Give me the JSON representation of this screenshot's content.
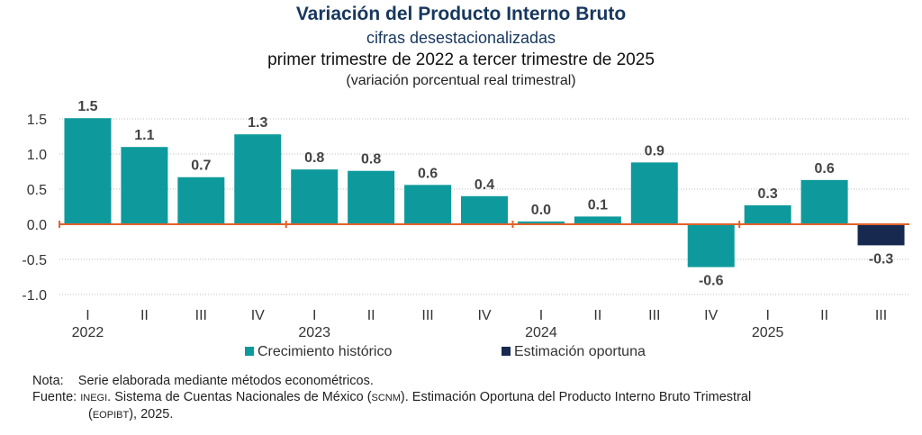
{
  "title": "Variación del Producto Interno Bruto",
  "subtitle1": "cifras desestacionalizadas",
  "subtitle2": "primer trimestre de 2022 a tercer trimestre de 2025",
  "subtitle3": "(variación porcentual real trimestral)",
  "chart_data": {
    "type": "bar",
    "categories": [
      "I",
      "II",
      "III",
      "IV",
      "I",
      "II",
      "III",
      "IV",
      "I",
      "II",
      "III",
      "IV",
      "I",
      "II",
      "III"
    ],
    "years": [
      {
        "label": "2022",
        "index": 0
      },
      {
        "label": "2023",
        "index": 4
      },
      {
        "label": "2024",
        "index": 8
      },
      {
        "label": "2025",
        "index": 12
      }
    ],
    "values": [
      1.51,
      1.1,
      0.67,
      1.28,
      0.78,
      0.76,
      0.56,
      0.4,
      0.04,
      0.11,
      0.88,
      -0.61,
      0.27,
      0.63,
      -0.3
    ],
    "data_labels": [
      "1.5",
      "1.1",
      "0.7",
      "1.3",
      "0.8",
      "0.8",
      "0.6",
      "0.4",
      "0.0",
      "0.1",
      "0.9",
      "-0.6",
      "0.3",
      "0.6",
      "-0.3"
    ],
    "series_type": [
      "hist",
      "hist",
      "hist",
      "hist",
      "hist",
      "hist",
      "hist",
      "hist",
      "hist",
      "hist",
      "hist",
      "hist",
      "hist",
      "hist",
      "est"
    ],
    "yticks": [
      "1.5",
      "1.0",
      "0.5",
      "0.0",
      "-0.5",
      "-1.0"
    ],
    "ylim": [
      -1.0,
      1.5
    ],
    "grid": true,
    "legend": [
      {
        "name": "Crecimiento  histórico",
        "color": "#0e9a9c"
      },
      {
        "name": "Estimación oportuna",
        "color": "#17294f"
      }
    ],
    "legend_position": "bottom",
    "axis_color": "#e0622a"
  },
  "notes": {
    "nota_label": "Nota:",
    "nota_text": "Serie elaborada mediante métodos econométricos.",
    "fuente_label": "Fuente:",
    "fuente_inegi": "INEGI",
    "fuente_text1": ". Sistema de Cuentas Nacionales de México (",
    "fuente_scnm": "SCNM",
    "fuente_text2": "). Estimación Oportuna del Producto Interno Bruto Trimestral",
    "fuente_eopibt": "EOPIBT",
    "fuente_text3": "), 2025."
  }
}
